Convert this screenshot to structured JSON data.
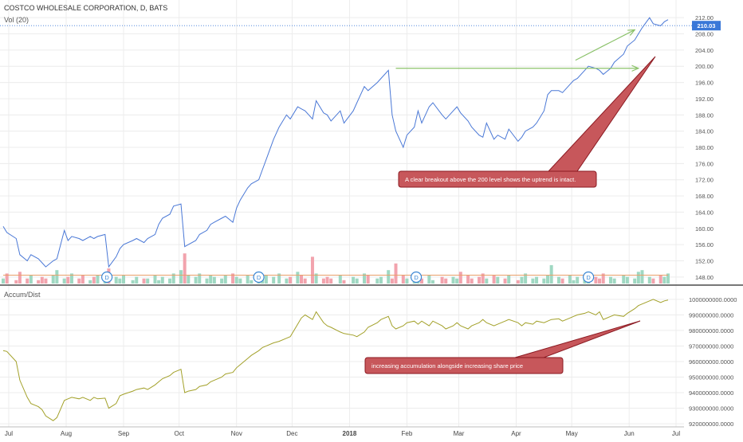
{
  "header": {
    "symbol_title": "COSTCO WHOLESALE CORPORATION, D, BATS",
    "volume_label": "Vol (20)",
    "indicator_label": "Accum/Dist"
  },
  "colors": {
    "price_line": "#4a78d6",
    "ad_line": "#a3a12a",
    "vol_up": "#9fd8c2",
    "vol_down": "#f2a3ad",
    "vol_ma": "#e8a06a",
    "arrow": "#8bc26a",
    "callout_fill": "#c7575b",
    "callout_border": "#8b1a22",
    "dividend_marker": "#3a86d4",
    "price_badge": "#3a78d8",
    "grid": "#ececec"
  },
  "chart_data": [
    {
      "type": "line",
      "title": "COSTCO WHOLESALE CORPORATION, D, BATS",
      "series": [
        {
          "name": "",
          "x": [
            "2017-06-28",
            "2017-06-30",
            "2017-07-05",
            "2017-07-07",
            "2017-07-11",
            "2017-07-13",
            "2017-07-17",
            "2017-07-19",
            "2017-07-21",
            "2017-07-25",
            "2017-07-27",
            "2017-07-31",
            "2017-08-02",
            "2017-08-04",
            "2017-08-08",
            "2017-08-10",
            "2017-08-14",
            "2017-08-16",
            "2017-08-18",
            "2017-08-22",
            "2017-08-24",
            "2017-08-28",
            "2017-08-30",
            "2017-09-01",
            "2017-09-06",
            "2017-09-08",
            "2017-09-12",
            "2017-09-14",
            "2017-09-18",
            "2017-09-20",
            "2017-09-22",
            "2017-09-26",
            "2017-09-28",
            "2017-10-02",
            "2017-10-04",
            "2017-10-06",
            "2017-10-10",
            "2017-10-12",
            "2017-10-16",
            "2017-10-18",
            "2017-10-20",
            "2017-10-24",
            "2017-10-26",
            "2017-10-30",
            "2017-11-01",
            "2017-11-03",
            "2017-11-07",
            "2017-11-09",
            "2017-11-13",
            "2017-11-15",
            "2017-11-17",
            "2017-11-21",
            "2017-11-24",
            "2017-11-28",
            "2017-11-30",
            "2017-12-04",
            "2017-12-06",
            "2017-12-08",
            "2017-12-12",
            "2017-12-14",
            "2017-12-18",
            "2017-12-20",
            "2017-12-22",
            "2017-12-27",
            "2017-12-29",
            "2018-01-03",
            "2018-01-05",
            "2018-01-09",
            "2018-01-11",
            "2018-01-16",
            "2018-01-18",
            "2018-01-22",
            "2018-01-24",
            "2018-01-26",
            "2018-01-30",
            "2018-02-01",
            "2018-02-05",
            "2018-02-07",
            "2018-02-09",
            "2018-02-13",
            "2018-02-15",
            "2018-02-20",
            "2018-02-22",
            "2018-02-26",
            "2018-02-28",
            "2018-03-02",
            "2018-03-06",
            "2018-03-08",
            "2018-03-12",
            "2018-03-14",
            "2018-03-16",
            "2018-03-20",
            "2018-03-22",
            "2018-03-26",
            "2018-03-28",
            "2018-04-02",
            "2018-04-04",
            "2018-04-06",
            "2018-04-10",
            "2018-04-12",
            "2018-04-16",
            "2018-04-18",
            "2018-04-20",
            "2018-04-24",
            "2018-04-26",
            "2018-04-30",
            "2018-05-02",
            "2018-05-04",
            "2018-05-08",
            "2018-05-10",
            "2018-05-14",
            "2018-05-16",
            "2018-05-18",
            "2018-05-22",
            "2018-05-24",
            "2018-05-29",
            "2018-05-31",
            "2018-06-04",
            "2018-06-06",
            "2018-06-08",
            "2018-06-12",
            "2018-06-14",
            "2018-06-18",
            "2018-06-20",
            "2018-06-22"
          ],
          "values": [
            160.5,
            159.0,
            157.5,
            153.5,
            152.0,
            153.5,
            152.5,
            151.5,
            150.5,
            152.0,
            152.5,
            159.5,
            157.0,
            158.0,
            157.5,
            157.0,
            158.0,
            157.5,
            158.0,
            158.5,
            150.5,
            153.0,
            155.0,
            156.0,
            157.0,
            157.5,
            156.5,
            157.5,
            158.5,
            161.0,
            162.5,
            163.5,
            165.5,
            166.0,
            155.5,
            156.0,
            157.0,
            158.5,
            159.5,
            161.0,
            161.5,
            162.5,
            163.0,
            161.5,
            165.0,
            167.0,
            170.0,
            171.0,
            172.0,
            174.5,
            177.0,
            182.0,
            185.0,
            188.0,
            187.0,
            190.0,
            189.5,
            189.0,
            187.0,
            191.5,
            188.5,
            188.0,
            186.5,
            189.0,
            186.0,
            189.0,
            191.0,
            195.0,
            194.0,
            196.0,
            197.0,
            199.0,
            188.0,
            184.0,
            180.0,
            183.0,
            185.0,
            189.0,
            186.0,
            190.0,
            191.0,
            188.0,
            187.0,
            189.0,
            190.0,
            188.5,
            186.5,
            185.0,
            183.0,
            182.5,
            186.0,
            182.0,
            183.0,
            182.0,
            184.5,
            181.5,
            182.5,
            184.0,
            185.0,
            186.0,
            189.0,
            193.0,
            194.0,
            194.0,
            193.5,
            195.5,
            196.5,
            197.0,
            199.0,
            200.0,
            199.5,
            199.0,
            198.0,
            199.5,
            201.0,
            203.0,
            205.0,
            206.5,
            208.0,
            209.5,
            212.0,
            210.5,
            210.0,
            211.0,
            211.5
          ]
        }
      ],
      "x_ticks": [
        "Jul",
        "Aug",
        "Sep",
        "Oct",
        "Nov",
        "Dec",
        "2018",
        "Feb",
        "Mar",
        "Apr",
        "May",
        "Jun",
        "Jul"
      ],
      "y_ticks": [
        "148.00",
        "152.00",
        "156.00",
        "160.00",
        "164.00",
        "168.00",
        "172.00",
        "176.00",
        "180.00",
        "184.00",
        "188.00",
        "192.00",
        "196.00",
        "200.00",
        "204.00",
        "208.00",
        "212.00"
      ],
      "ylim": [
        146,
        214
      ],
      "last_price": "210.03",
      "annotations": [
        {
          "type": "arrow",
          "from": [
            "2018-01-26",
            199.5
          ],
          "to": [
            "2018-06-06",
            199.5
          ]
        },
        {
          "type": "arrow",
          "from": [
            "2018-05-03",
            201.5
          ],
          "to": [
            "2018-06-04",
            209.0
          ]
        },
        {
          "type": "callout",
          "text": "A clear breakout above the 200 level shows the uptrend is intact."
        }
      ],
      "dividend_markers": [
        "D",
        "D",
        "D",
        "D"
      ],
      "grid": true
    },
    {
      "type": "bar",
      "title": "Vol (20)",
      "series": [
        {
          "name": "",
          "values": [
            3,
            6,
            2,
            7,
            3,
            5,
            2,
            4,
            3,
            5,
            8,
            3,
            4,
            6,
            3,
            5,
            2,
            4,
            5,
            3,
            9,
            4,
            3,
            5,
            2,
            4,
            3,
            3,
            5,
            2,
            4,
            3,
            6,
            8,
            18,
            5,
            4,
            6,
            3,
            5,
            4,
            3,
            5,
            6,
            4,
            3,
            5,
            2,
            4,
            3,
            5,
            4,
            6,
            3,
            4,
            7,
            5,
            3,
            16,
            6,
            3,
            4,
            3,
            5,
            2,
            4,
            3,
            6,
            5,
            3,
            4,
            8,
            3,
            12,
            5,
            3,
            6,
            4,
            3,
            5,
            2,
            4,
            3,
            4,
            3,
            7,
            5,
            3,
            4,
            6,
            3,
            5,
            4,
            3,
            5,
            2,
            4,
            6,
            3,
            4,
            3,
            5,
            11,
            4,
            3,
            5,
            2,
            4,
            3,
            5,
            4,
            3,
            6,
            4,
            3,
            5,
            4,
            3,
            7,
            8,
            4,
            3,
            5,
            4,
            6
          ]
        }
      ],
      "ma_values": [
        5,
        5,
        5,
        5,
        5,
        5,
        5,
        5,
        5,
        5,
        5,
        5,
        5,
        5,
        5,
        5,
        5,
        5,
        5,
        5,
        5,
        5,
        5,
        5,
        5,
        5,
        5,
        5,
        5,
        5,
        5,
        5,
        5,
        5,
        5,
        5,
        5,
        5,
        5,
        5,
        5,
        5,
        5,
        5,
        5,
        5,
        5,
        5,
        5,
        5,
        5,
        5,
        5,
        5,
        5,
        5,
        5,
        5,
        5,
        5,
        5,
        5,
        5,
        5,
        5,
        5,
        5,
        5,
        5,
        5,
        5,
        5,
        5,
        5,
        5,
        5,
        5,
        5,
        5,
        5,
        5,
        5,
        5,
        5,
        5,
        5,
        5,
        5,
        5,
        5,
        5,
        5,
        5,
        5,
        5,
        5,
        5,
        5,
        5,
        5,
        5,
        5,
        5,
        5,
        5,
        5,
        5,
        5,
        5,
        5,
        5,
        5,
        5,
        5,
        5,
        5,
        5,
        5,
        5,
        5,
        5,
        5,
        5,
        5,
        5
      ]
    },
    {
      "type": "line",
      "title": "Accum/Dist",
      "series": [
        {
          "name": "",
          "values": [
            967000000,
            966500000,
            960000000,
            948000000,
            937000000,
            933000000,
            931000000,
            929000000,
            925000000,
            922000000,
            924000000,
            935000000,
            936000000,
            937000000,
            936000000,
            937000000,
            935000000,
            937000000,
            936000000,
            936500000,
            930000000,
            933000000,
            938000000,
            939000000,
            941000000,
            942000000,
            943000000,
            942000000,
            945000000,
            947000000,
            949000000,
            951000000,
            953000000,
            955000000,
            940000000,
            941000000,
            942000000,
            944000000,
            945000000,
            947000000,
            948000000,
            950000000,
            952000000,
            953000000,
            956000000,
            958000000,
            962000000,
            964000000,
            967000000,
            969000000,
            970000000,
            972000000,
            973000000,
            975000000,
            976000000,
            984000000,
            988000000,
            990000000,
            987000000,
            992000000,
            985000000,
            983000000,
            982000000,
            979000000,
            978000000,
            977000000,
            976000000,
            979000000,
            982000000,
            985000000,
            987000000,
            989000000,
            983000000,
            981000000,
            983000000,
            985000000,
            986000000,
            984000000,
            986000000,
            983000000,
            986000000,
            983000000,
            981000000,
            983000000,
            985000000,
            983000000,
            981000000,
            983000000,
            985000000,
            987000000,
            985000000,
            983000000,
            984000000,
            986000000,
            987000000,
            985000000,
            983000000,
            985000000,
            984000000,
            986000000,
            985000000,
            986000000,
            987000000,
            987500000,
            986000000,
            988000000,
            989000000,
            990000000,
            991000000,
            992000000,
            990000000,
            992000000,
            987000000,
            989000000,
            990000000,
            989000000,
            991000000,
            994000000,
            996000000,
            997000000,
            999000000,
            1000000000,
            998000000,
            999000000,
            999500000
          ]
        }
      ],
      "y_ticks": [
        "920000000.0000",
        "930000000.0000",
        "940000000.0000",
        "950000000.0000",
        "960000000.0000",
        "970000000.0000",
        "980000000.0000",
        "990000000.0000",
        "1000000000.0000"
      ],
      "ylim": [
        918000000,
        1003000000
      ],
      "annotations": [
        {
          "type": "callout",
          "text": "increasing accumulation alongside increasing share price"
        }
      ],
      "grid": true
    }
  ]
}
